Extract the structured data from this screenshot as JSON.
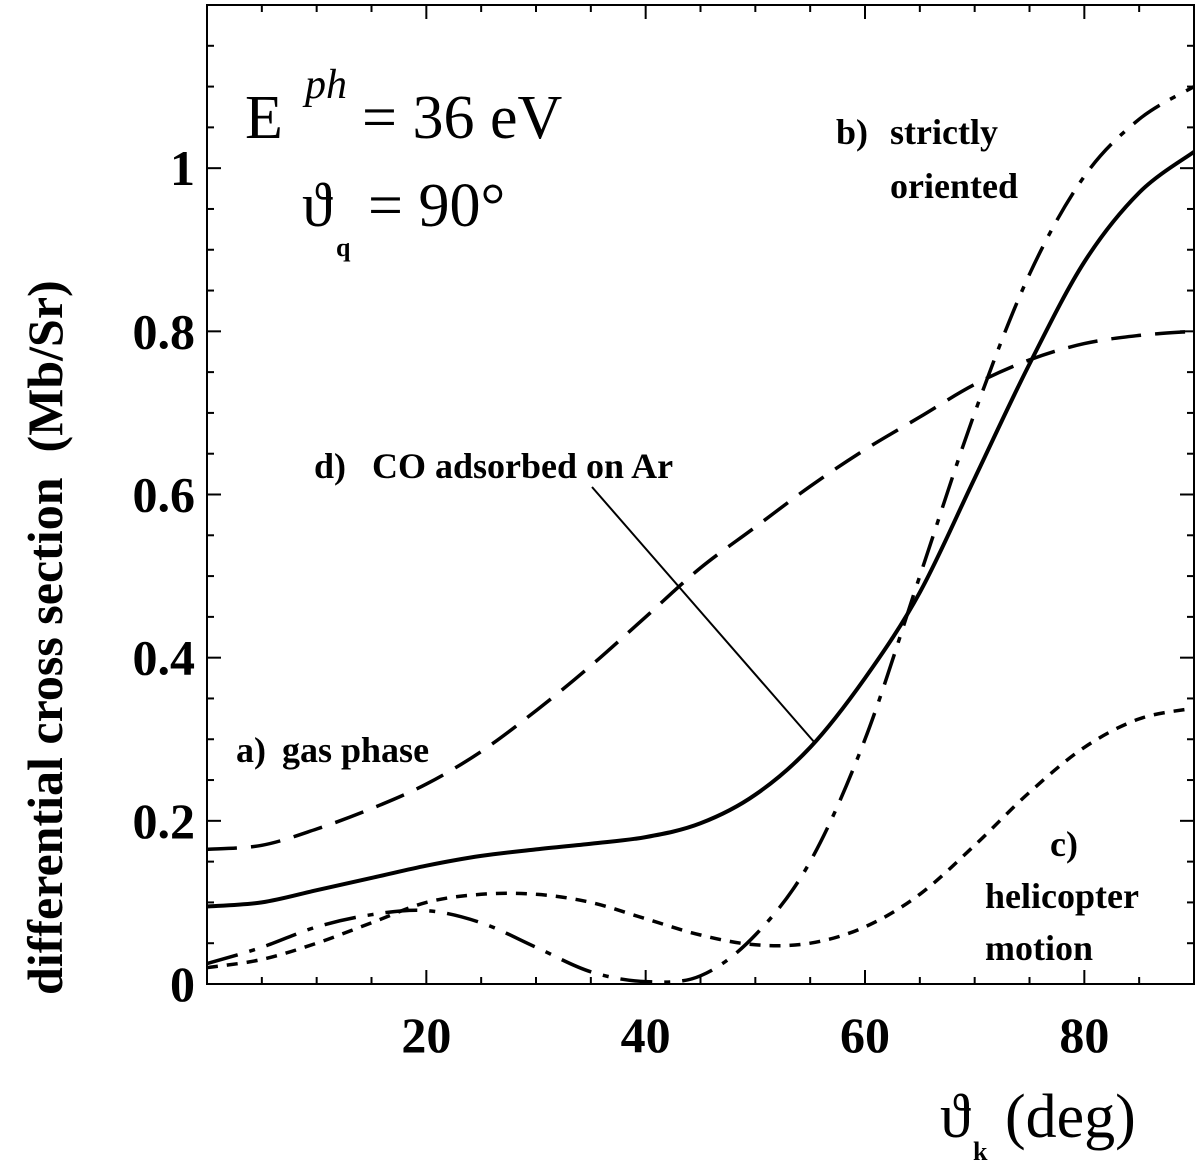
{
  "chart_data": {
    "type": "line",
    "xlim": [
      0,
      90
    ],
    "ylim": [
      0,
      1.2
    ],
    "x_ticks": [
      20,
      40,
      60,
      80
    ],
    "x_tick_labels": [
      "20",
      "40",
      "60",
      "80"
    ],
    "y_ticks": [
      0,
      0.2,
      0.4,
      0.6,
      0.8,
      1.0
    ],
    "y_tick_labels": [
      "0",
      "0.2",
      "0.4",
      "0.6",
      "0.8",
      "1"
    ],
    "xlabel": {
      "symbol": "ϑ",
      "subscript": "k",
      "unit": "(deg)"
    },
    "ylabel": "differential cross section  (Mb/Sr)",
    "annotation": {
      "energy_symbol": "E",
      "energy_superscript": "ph",
      "energy_value": "= 36 eV",
      "angle_symbol": "ϑ",
      "angle_subscript": "q",
      "angle_value": "= 90°"
    },
    "series": [
      {
        "key": "a",
        "label_prefix": "a)",
        "label_lines": [
          "gas phase"
        ],
        "style": "long-dash",
        "x": [
          0,
          5,
          10,
          15,
          20,
          25,
          30,
          35,
          40,
          45,
          50,
          55,
          60,
          65,
          70,
          75,
          80,
          85,
          90
        ],
        "y": [
          0.165,
          0.17,
          0.19,
          0.215,
          0.245,
          0.285,
          0.335,
          0.39,
          0.45,
          0.51,
          0.56,
          0.61,
          0.655,
          0.695,
          0.735,
          0.765,
          0.785,
          0.795,
          0.8
        ]
      },
      {
        "key": "b",
        "label_prefix": "b)",
        "label_lines": [
          "strictly",
          "oriented"
        ],
        "style": "dash-dot",
        "x": [
          0,
          5,
          10,
          15,
          20,
          25,
          30,
          35,
          40,
          45,
          50,
          55,
          60,
          65,
          70,
          75,
          80,
          85,
          90
        ],
        "y": [
          0.025,
          0.045,
          0.07,
          0.085,
          0.09,
          0.075,
          0.045,
          0.015,
          0.003,
          0.01,
          0.06,
          0.15,
          0.3,
          0.5,
          0.7,
          0.87,
          0.99,
          1.06,
          1.1
        ]
      },
      {
        "key": "c",
        "label_prefix": "c)",
        "label_lines": [
          "helicopter",
          "motion"
        ],
        "style": "short-dash",
        "x": [
          0,
          5,
          10,
          15,
          20,
          25,
          30,
          35,
          40,
          45,
          50,
          55,
          60,
          65,
          70,
          75,
          80,
          85,
          90
        ],
        "y": [
          0.02,
          0.03,
          0.05,
          0.075,
          0.1,
          0.11,
          0.11,
          0.1,
          0.08,
          0.06,
          0.048,
          0.05,
          0.07,
          0.11,
          0.17,
          0.235,
          0.29,
          0.325,
          0.338
        ]
      },
      {
        "key": "d",
        "label_prefix": "d)",
        "label_lines": [
          "CO adsorbed on Ar"
        ],
        "style": "solid",
        "x": [
          0,
          5,
          10,
          15,
          20,
          25,
          30,
          35,
          40,
          45,
          50,
          55,
          60,
          65,
          70,
          75,
          80,
          85,
          90
        ],
        "y": [
          0.095,
          0.1,
          0.115,
          0.13,
          0.145,
          0.157,
          0.165,
          0.172,
          0.18,
          0.197,
          0.232,
          0.29,
          0.375,
          0.48,
          0.62,
          0.76,
          0.885,
          0.97,
          1.02
        ]
      }
    ]
  }
}
